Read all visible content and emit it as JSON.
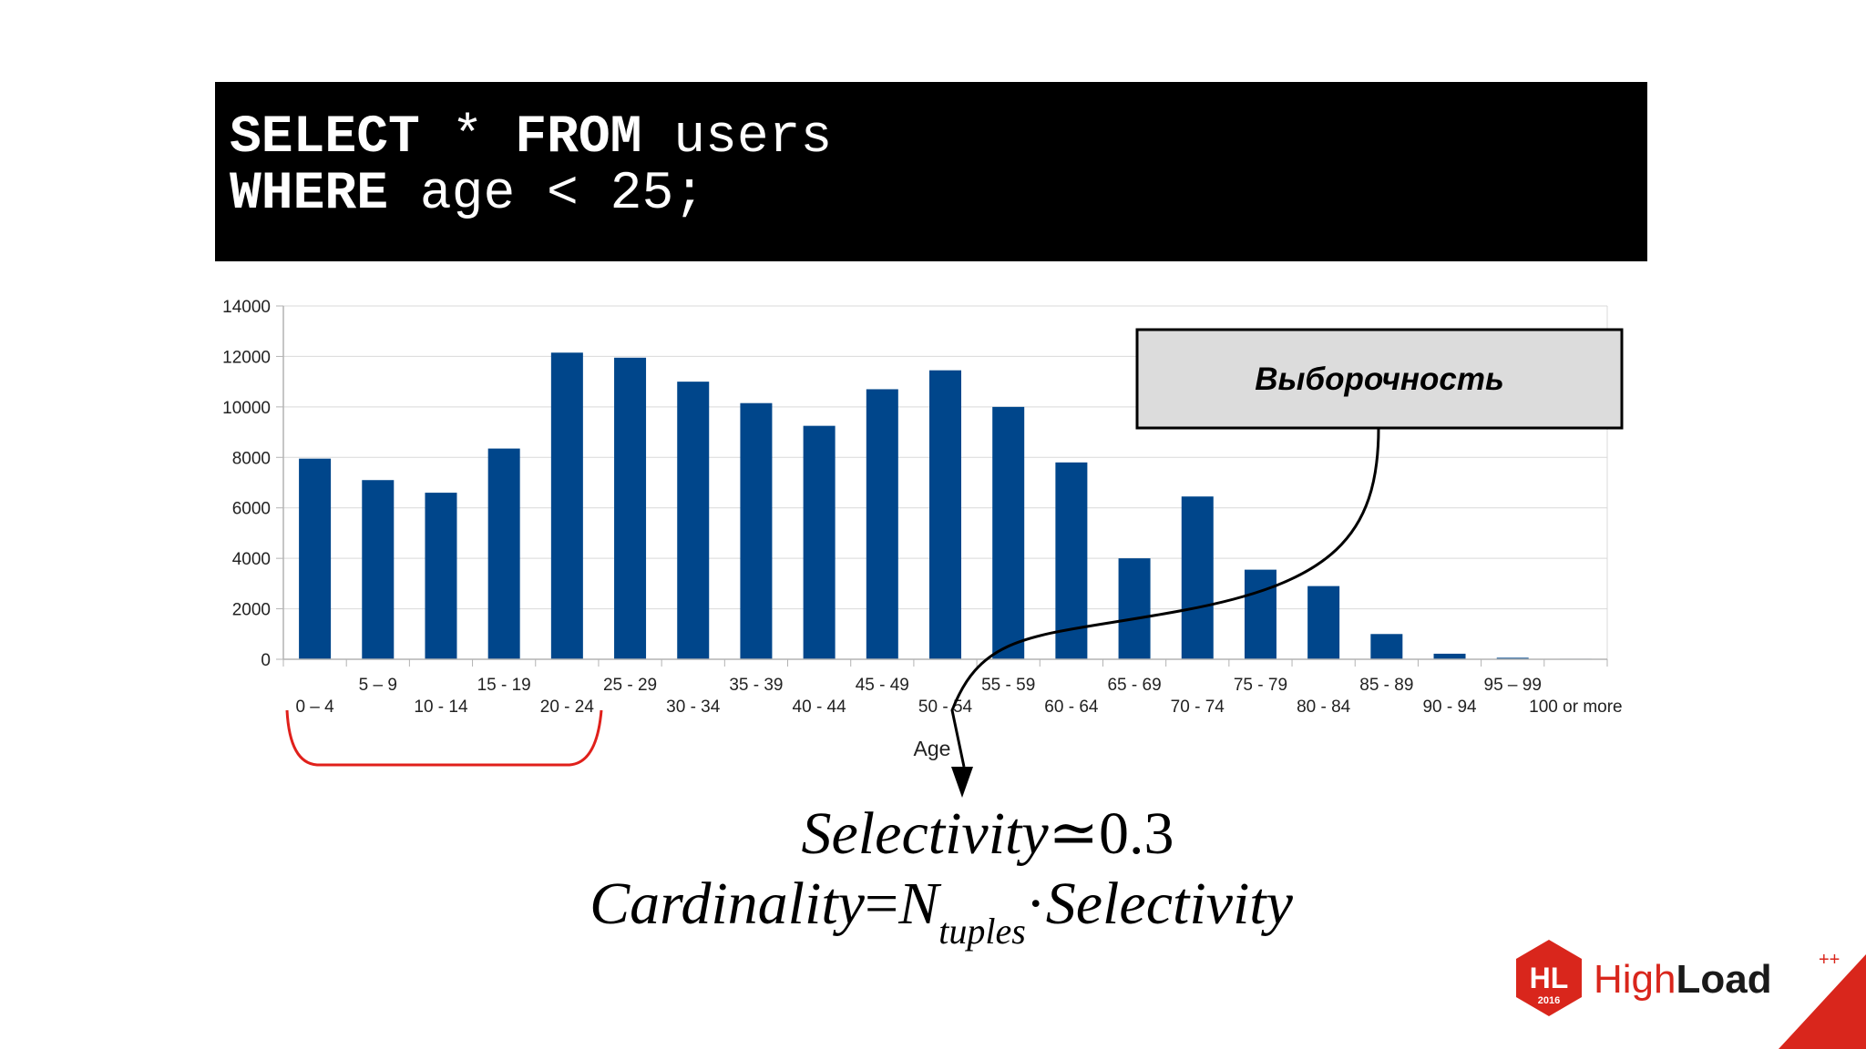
{
  "sql": {
    "line1": {
      "kw1": "SELECT",
      "mid": " * ",
      "kw2": "FROM",
      "rest": " users"
    },
    "line2": {
      "kw": "WHERE",
      "rest": " age < 25;"
    }
  },
  "callout": {
    "text": "Выборочность"
  },
  "formula": {
    "selectivity_label": "Selectivity",
    "approx_sym": "≃",
    "selectivity_value": "0.3",
    "cardinality_label": "Cardinality",
    "eq_sym": "=",
    "n_label": "N",
    "n_sub": "tuples",
    "dot": "·",
    "selectivity_term": "Selectivity"
  },
  "logo": {
    "hl": "HL",
    "year": "2016",
    "high": "High",
    "load": "Load",
    "plus": "++"
  },
  "colors": {
    "bar": "#00468b",
    "bracket": "#e0201b",
    "logo_red": "#d9261c",
    "callout_fill": "#dcdcdc"
  },
  "chart_data": {
    "type": "bar",
    "title": "",
    "xlabel": "Age",
    "ylabel": "",
    "ylim": [
      0,
      14000
    ],
    "yticks": [
      0,
      2000,
      4000,
      6000,
      8000,
      10000,
      12000,
      14000
    ],
    "grid": true,
    "categories": [
      "0 – 4",
      "5 – 9",
      "10 - 14",
      "15 - 19",
      "20 - 24",
      "25 - 29",
      "30 - 34",
      "35 - 39",
      "40 - 44",
      "45 - 49",
      "50 - 54",
      "55 - 59",
      "60 - 64",
      "65 - 69",
      "70 - 74",
      "75 - 79",
      "80 - 84",
      "85 - 89",
      "90 - 94",
      "95 – 99",
      "100 or more"
    ],
    "values": [
      7950,
      7100,
      6600,
      8350,
      12150,
      11950,
      11000,
      10150,
      9250,
      10700,
      11450,
      10000,
      7800,
      4000,
      6450,
      3550,
      2900,
      1000,
      220,
      60,
      20
    ],
    "highlight_range": [
      "0 – 4",
      "20 - 24"
    ]
  }
}
